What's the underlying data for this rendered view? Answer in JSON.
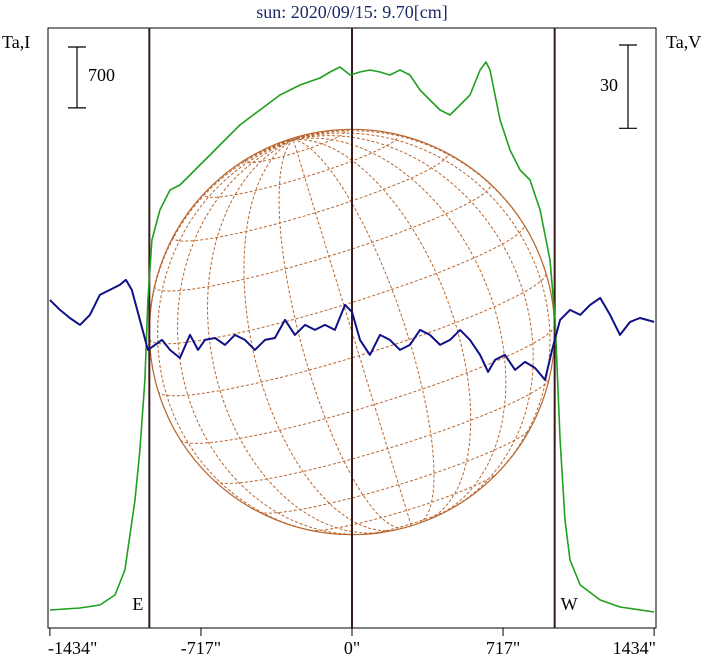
{
  "chart_data": {
    "type": "line",
    "title": "sun: 2020/09/15: 9.70[cm]",
    "y_label": "Ta,I",
    "y2_label": "Ta,V",
    "xlim": [
      -1443,
      1443
    ],
    "xticks": [
      {
        "value": -1434,
        "label": "-1434\""
      },
      {
        "value": -717,
        "label": "-717\""
      },
      {
        "value": 0,
        "label": "0\""
      },
      {
        "value": 717,
        "label": "717\""
      },
      {
        "value": 1434,
        "label": "1434\""
      }
    ],
    "ylim": [
      0,
      6900
    ],
    "y2lim": [
      -108,
      108
    ],
    "scale_bar": 700,
    "y2_scale_bar": 30,
    "vlines": [
      -962,
      0,
      962
    ],
    "annotations": [
      {
        "text": "E",
        "x": -962
      },
      {
        "text": "W",
        "x": 962
      }
    ],
    "series": [
      {
        "name": "Ta,I",
        "color": "#1fa01f",
        "x": [
          -1434,
          -1291,
          -1197,
          -1125,
          -1078,
          -1030,
          -1007,
          -983,
          -969,
          -950,
          -912,
          -864,
          -817,
          -769,
          -722,
          -674,
          -627,
          -532,
          -437,
          -342,
          -247,
          -152,
          -104,
          -57,
          -9,
          38,
          85,
          133,
          180,
          228,
          275,
          323,
          370,
          418,
          465,
          513,
          560,
          608,
          636,
          655,
          703,
          750,
          798,
          845,
          893,
          940,
          964,
          988,
          1011,
          1035,
          1083,
          1178,
          1272,
          1434
        ],
        "values": [
          207,
          230,
          265,
          380,
          667,
          1472,
          2047,
          2852,
          3772,
          4462,
          4807,
          5037,
          5095,
          5210,
          5325,
          5440,
          5555,
          5785,
          5957,
          6130,
          6245,
          6325,
          6394,
          6452,
          6360,
          6394,
          6417,
          6394,
          6360,
          6417,
          6360,
          6187,
          6072,
          5957,
          5900,
          6015,
          6130,
          6417,
          6509,
          6417,
          5842,
          5497,
          5267,
          5152,
          4807,
          4232,
          3542,
          2162,
          1242,
          782,
          495,
          322,
          242,
          184
        ]
      },
      {
        "name": "Ta,V",
        "color": "#101088",
        "axis": "y2",
        "x": [
          -1434,
          -1386,
          -1339,
          -1291,
          -1244,
          -1197,
          -1149,
          -1102,
          -1073,
          -1045,
          -1007,
          -969,
          -935,
          -902,
          -864,
          -817,
          -769,
          -731,
          -698,
          -650,
          -603,
          -556,
          -508,
          -461,
          -413,
          -366,
          -318,
          -271,
          -223,
          -176,
          -128,
          -81,
          -33,
          0,
          38,
          85,
          133,
          180,
          228,
          275,
          323,
          370,
          418,
          465,
          513,
          560,
          608,
          646,
          679,
          726,
          774,
          821,
          869,
          916,
          950,
          988,
          1035,
          1083,
          1130,
          1178,
          1225,
          1272,
          1320,
          1367,
          1434
        ],
        "values": [
          10.1,
          6.5,
          3.6,
          1.1,
          4.7,
          11.9,
          13.7,
          15.5,
          17.3,
          13.7,
          2.9,
          -7.9,
          -6.1,
          -4.3,
          -7.9,
          -10.8,
          -2.5,
          -7.9,
          -4.3,
          -3.6,
          -6.1,
          -2.5,
          -4.3,
          -7.9,
          -4.3,
          -3.6,
          2.9,
          -2.5,
          1.1,
          -0.7,
          1.1,
          -0.7,
          8.3,
          5.8,
          -4.3,
          -9.7,
          -2.5,
          -4.3,
          -7.9,
          -6.1,
          -0.7,
          -2.5,
          -6.1,
          -4.3,
          -0.7,
          -4.3,
          -9.7,
          -15.8,
          -11.5,
          -9.7,
          -15.1,
          -12.2,
          -14.4,
          -18.7,
          -7.9,
          2.9,
          6.5,
          4.7,
          8.3,
          10.8,
          4.7,
          -2.5,
          2.2,
          3.6,
          2.2
        ]
      }
    ]
  }
}
